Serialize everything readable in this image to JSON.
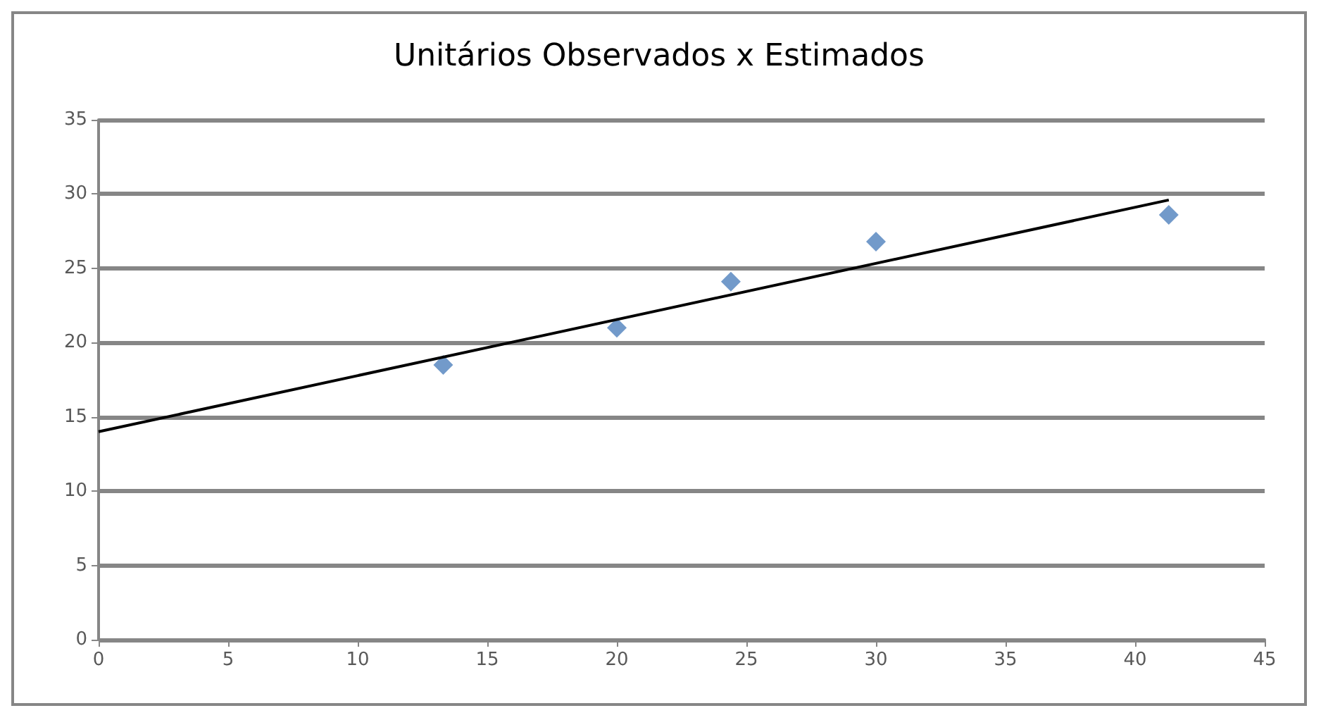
{
  "chart_data": {
    "type": "scatter",
    "title": "Unitários Observados x Estimados",
    "series": [
      {
        "color": "#4f81bd",
        "x": [
          13.3,
          20,
          24.4,
          30,
          41.3
        ],
        "values": [
          18.5,
          21,
          24.1,
          26.8,
          28.6
        ],
        "marker": "diamond"
      },
      {
        "type": "line",
        "color": "#000000",
        "x": [
          0,
          41.3
        ],
        "values": [
          14,
          29.6
        ],
        "marker": "none",
        "line_style": "solid"
      }
    ],
    "xlim": [
      0,
      45
    ],
    "xticks": [
      0,
      5,
      10,
      15,
      20,
      25,
      30,
      35,
      40,
      45
    ],
    "ylim": [
      0,
      35
    ],
    "yticks": [
      0,
      5,
      10,
      15,
      20,
      25,
      30,
      35
    ],
    "grid": "y"
  }
}
